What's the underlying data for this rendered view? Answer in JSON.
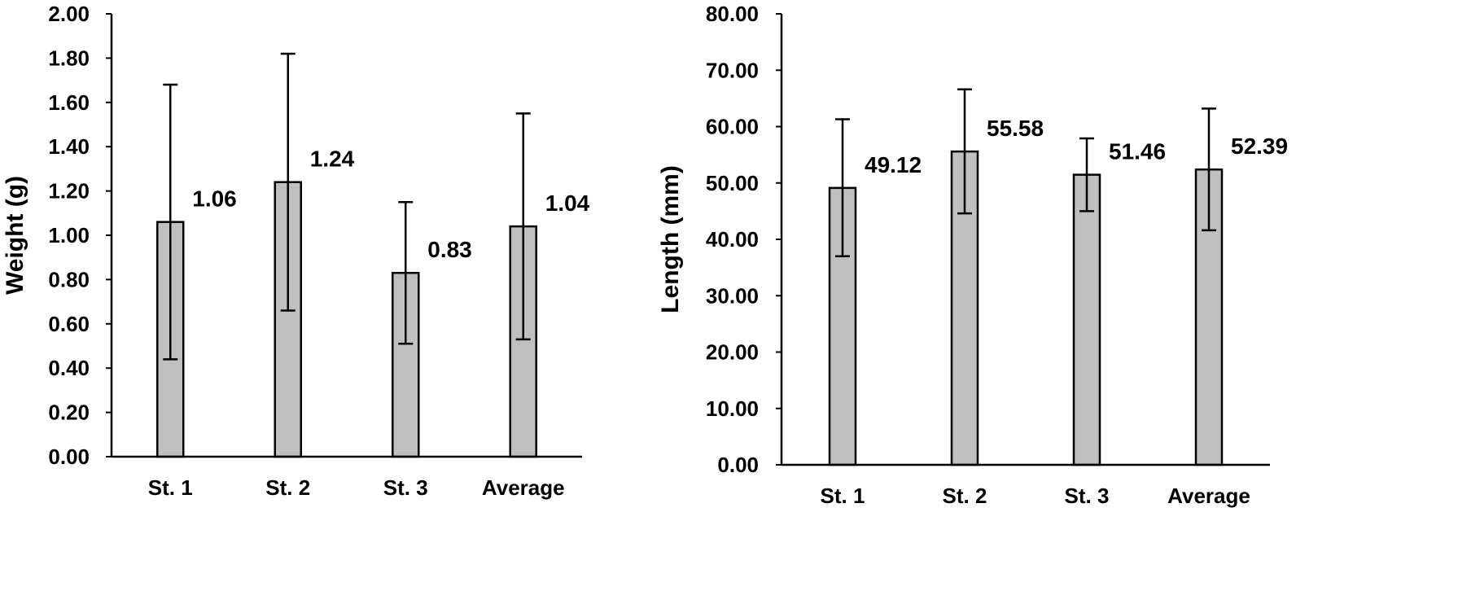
{
  "chart_data": [
    {
      "type": "bar",
      "title": "",
      "xlabel": "",
      "ylabel": "Weight (g)",
      "ylim": [
        0,
        2
      ],
      "ytick_step": 0.2,
      "tick_decimals": 2,
      "categories": [
        "St. 1",
        "St. 2",
        "St. 3",
        "Average"
      ],
      "values": [
        1.06,
        1.24,
        0.83,
        1.04
      ],
      "data_labels": [
        "1.06",
        "1.24",
        "0.83",
        "1.04"
      ],
      "error_bars": [
        {
          "low": 0.44,
          "high": 1.68
        },
        {
          "low": 0.66,
          "high": 1.82
        },
        {
          "low": 0.51,
          "high": 1.15
        },
        {
          "low": 0.53,
          "high": 1.55
        }
      ],
      "bar_color": "#bfbfbf",
      "grid": false,
      "legend": "none"
    },
    {
      "type": "bar",
      "title": "",
      "xlabel": "",
      "ylabel": "Length (mm)",
      "ylim": [
        0,
        80
      ],
      "ytick_step": 10,
      "tick_decimals": 2,
      "categories": [
        "St. 1",
        "St. 2",
        "St. 3",
        "Average"
      ],
      "values": [
        49.12,
        55.58,
        51.46,
        52.39
      ],
      "data_labels": [
        "49.12",
        "55.58",
        "51.46",
        "52.39"
      ],
      "error_bars": [
        {
          "low": 37.0,
          "high": 61.3
        },
        {
          "low": 44.6,
          "high": 66.6
        },
        {
          "low": 45.0,
          "high": 57.9
        },
        {
          "low": 41.6,
          "high": 63.2
        }
      ],
      "bar_color": "#bfbfbf",
      "grid": false,
      "legend": "none"
    }
  ]
}
